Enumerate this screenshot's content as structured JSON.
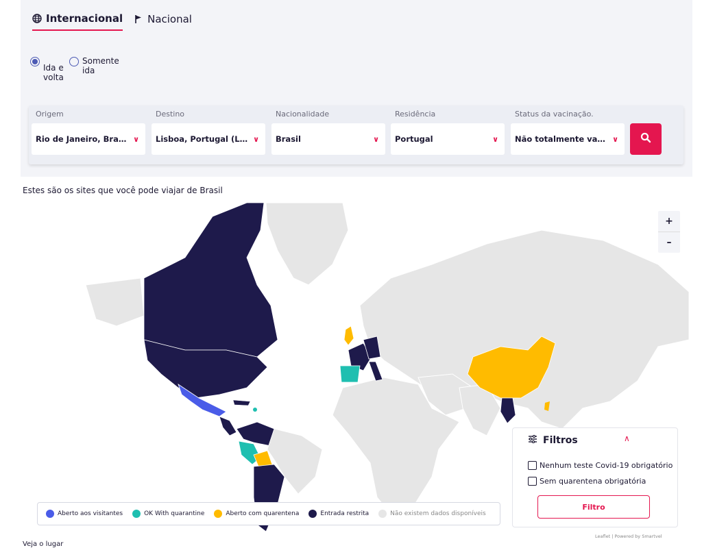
{
  "tabs": [
    {
      "label": "Internacional",
      "icon": "globe-icon",
      "active": true
    },
    {
      "label": "Nacional",
      "icon": "flag-icon",
      "active": false
    }
  ],
  "trip_type": [
    {
      "label": "Ida e volta",
      "checked": true
    },
    {
      "label": "Somente ida",
      "checked": false
    }
  ],
  "search": {
    "fields": [
      {
        "label": "Origem",
        "value": "Rio de Janeiro, Brasil (..."
      },
      {
        "label": "Destino",
        "value": "Lisboa, Portugal (LIS),"
      },
      {
        "label": "Nacionalidade",
        "value": "Brasil"
      },
      {
        "label": "Residência",
        "value": "Portugal"
      },
      {
        "label": "Status da vacinação.",
        "value": "Não totalmente vacina..."
      }
    ],
    "button_icon": "search-icon"
  },
  "intro_text": "Estes são os sites que você pode viajar de Brasil",
  "map": {
    "zoom_in": "+",
    "zoom_out": "–",
    "legend": [
      {
        "label": "Aberto aos visitantes",
        "color": "#4a5ce8"
      },
      {
        "label": "OK With quarantine",
        "color": "#1fbfb0"
      },
      {
        "label": "Aberto com quarentena",
        "color": "#ffbb00"
      },
      {
        "label": "Entrada restrita",
        "color": "#1e1a4b"
      },
      {
        "label": "Não existem dados disponíveis",
        "color": "#e6e6e6"
      }
    ],
    "attribution": "Leaflet | Powered by Smartvel"
  },
  "filters": {
    "title": "Filtros",
    "options": [
      "Nenhum teste Covid-19 obrigatório",
      "Sem quarentena obrigatória"
    ],
    "button": "Filtro"
  },
  "bottom_text": "Veja o lugar"
}
